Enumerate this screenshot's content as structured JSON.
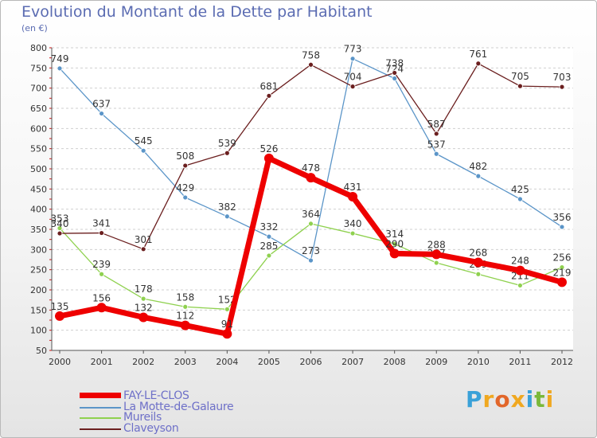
{
  "title": "Evolution du Montant de la Dette par Habitant",
  "subtitle": "(en €)",
  "logo": {
    "letters": [
      "P",
      "r",
      "o",
      "x",
      "i",
      "t",
      "i"
    ],
    "colors": [
      "#3aa1d8",
      "#f0a820",
      "#e2662a",
      "#f0a820",
      "#3aa1d8",
      "#7ab83a",
      "#f0a820"
    ]
  },
  "chart_data": {
    "type": "line",
    "title": "Evolution du Montant de la Dette par Habitant",
    "subtitle": "(en €)",
    "xlabel": "",
    "ylabel": "",
    "x": [
      "2000",
      "2001",
      "2002",
      "2003",
      "2004",
      "2005",
      "2006",
      "2007",
      "2008",
      "2009",
      "2010",
      "2011",
      "2012"
    ],
    "ylim": [
      50,
      800
    ],
    "yticks": [
      50,
      100,
      150,
      200,
      250,
      300,
      350,
      400,
      450,
      500,
      550,
      600,
      650,
      700,
      750,
      800
    ],
    "grid": "horizontal dashed",
    "legend_position": "bottom-left",
    "series": [
      {
        "name": "La Motte-de-Galaure",
        "color": "#5b95c8",
        "values": [
          749,
          637,
          545,
          429,
          382,
          332,
          273,
          773,
          724,
          537,
          482,
          425,
          356
        ],
        "labels": [
          "749",
          "637",
          "545",
          "429",
          "382",
          "332",
          "273",
          "773",
          "724",
          "537",
          "482",
          "425",
          "356"
        ]
      },
      {
        "name": "Mureils",
        "color": "#8fd14f",
        "values": [
          353,
          239,
          178,
          158,
          152,
          285,
          364,
          340,
          314,
          267,
          239,
          211,
          256
        ],
        "labels": [
          "353",
          "239",
          "178",
          "158",
          "152",
          "285",
          "364",
          "340",
          "314",
          "267",
          "239",
          "211",
          "256"
        ]
      },
      {
        "name": "Claveyson",
        "color": "#6b1f1f",
        "values": [
          340,
          341,
          301,
          508,
          539,
          681,
          758,
          704,
          738,
          587,
          761,
          705,
          703
        ],
        "labels": [
          "340",
          "341",
          "301",
          "508",
          "539",
          "681",
          "758",
          "704",
          "738",
          "587",
          "761",
          "705",
          "703"
        ]
      },
      {
        "name": "FAY-LE-CLOS",
        "color": "#ee0000",
        "values": [
          135,
          156,
          132,
          112,
          91,
          526,
          478,
          431,
          290,
          288,
          268,
          248,
          219
        ],
        "labels": [
          "135",
          "156",
          "132",
          "112",
          "91",
          "526",
          "478",
          "431",
          "290",
          "288",
          "268",
          "248",
          "219"
        ]
      }
    ],
    "legend": [
      "FAY-LE-CLOS",
      "La Motte-de-Galaure",
      "Mureils",
      "Claveyson"
    ]
  }
}
